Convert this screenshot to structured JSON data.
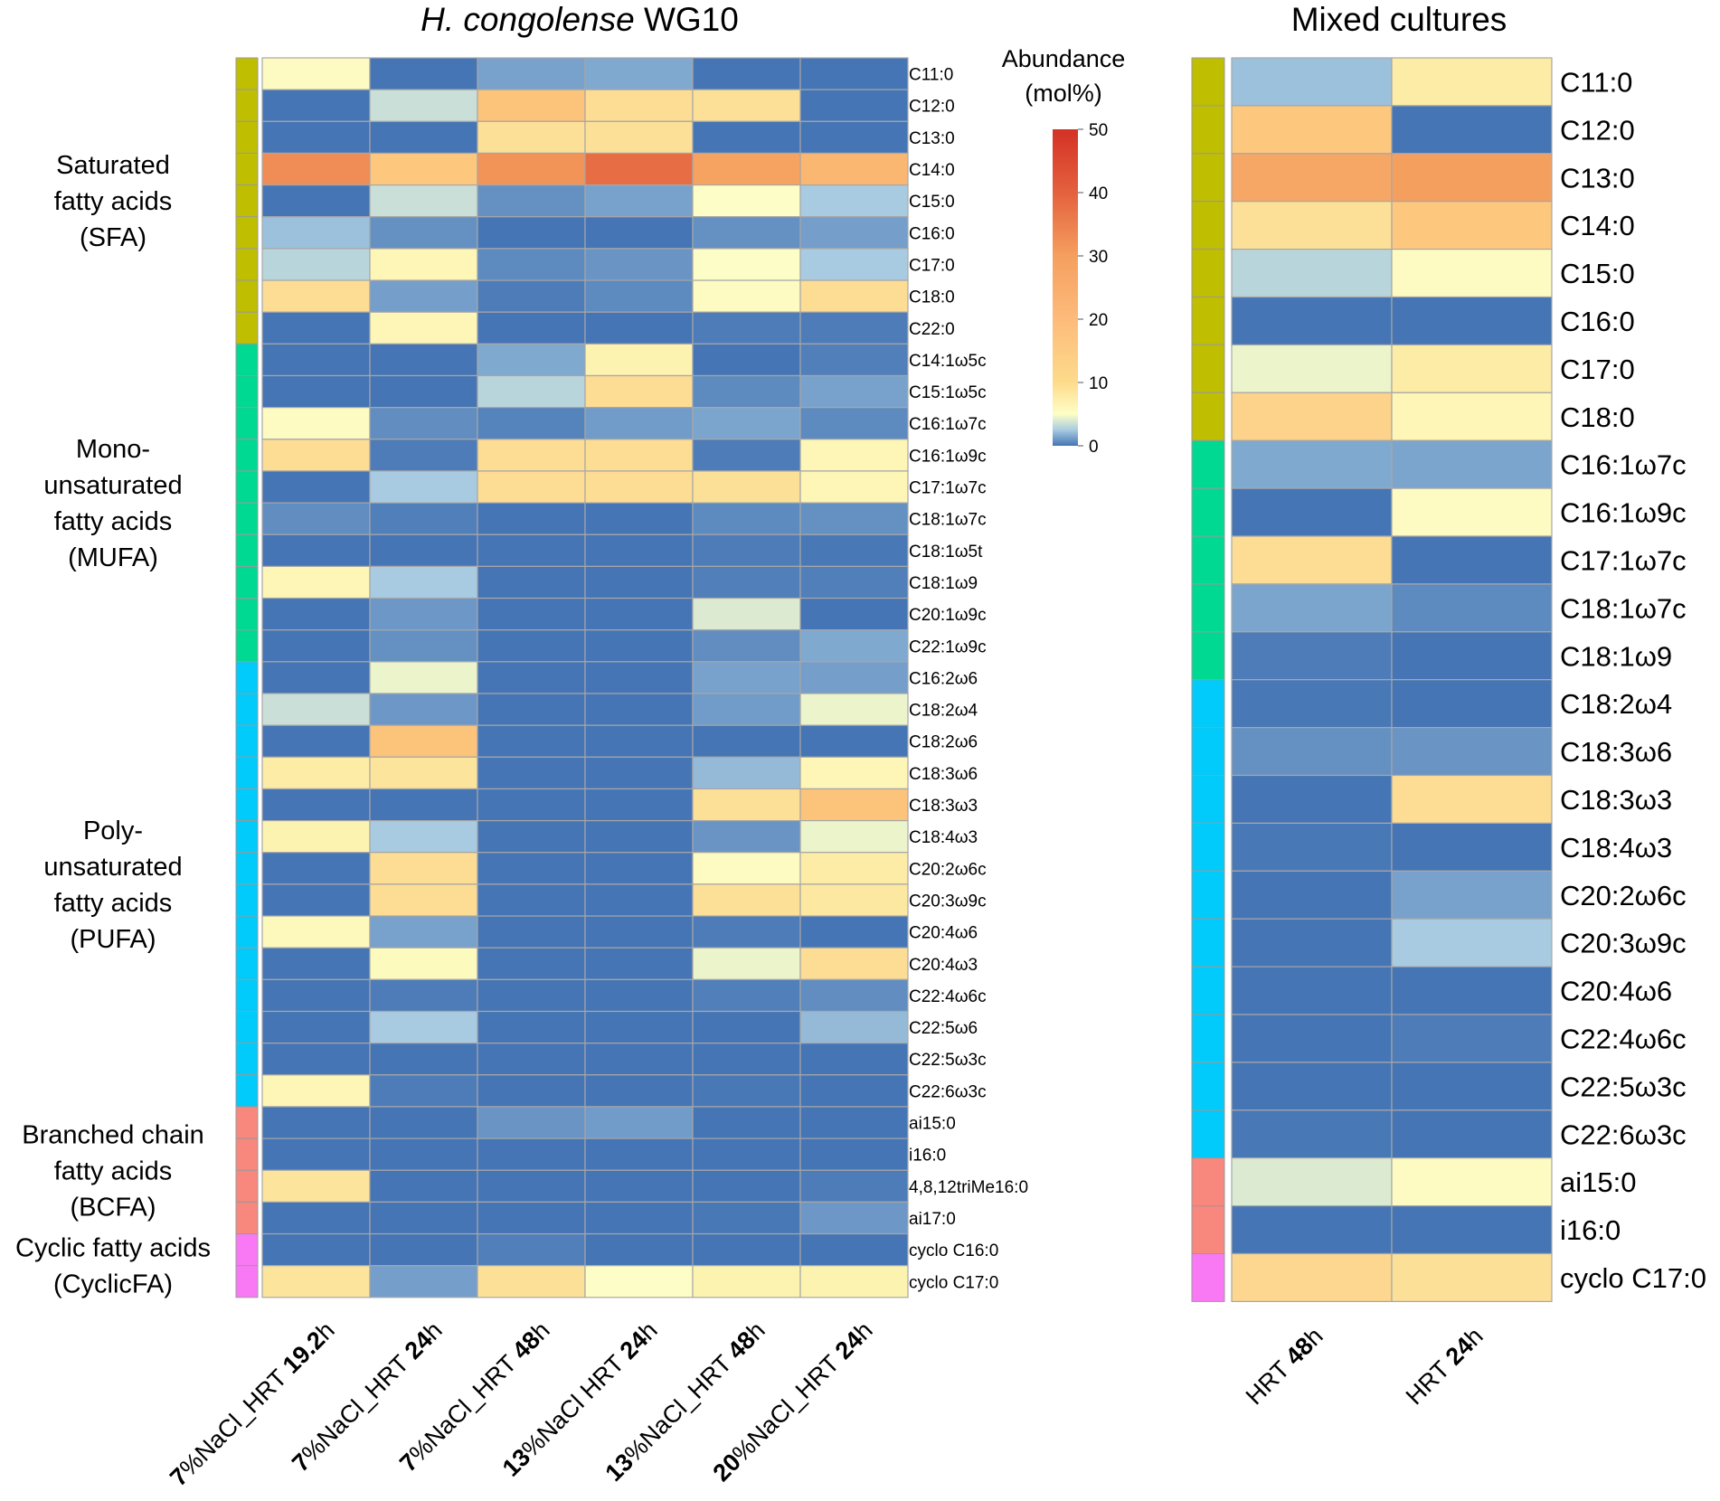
{
  "chart_data": [
    {
      "type": "heatmap",
      "title_italic": "H. congolense",
      "title_rest": " WG10",
      "legend_title": [
        "Abundance",
        "(mol%)"
      ],
      "value_unit": "mol%",
      "color_range": [
        0,
        50
      ],
      "legend_ticks": [
        "50",
        "40",
        "30",
        "20",
        "10",
        "0"
      ],
      "columns": [
        {
          "pre": "7",
          "mid": "%NaCl_HRT ",
          "bold": "19.2",
          "post": "h"
        },
        {
          "pre": "7",
          "mid": "%NaCl_HRT ",
          "bold": "24",
          "post": "h"
        },
        {
          "pre": "7",
          "mid": "%NaCl_HRT ",
          "bold": "48",
          "post": "h"
        },
        {
          "pre": "13",
          "mid": "%NaCl HRT ",
          "bold": "24",
          "post": "h"
        },
        {
          "pre": "13",
          "mid": "%NaCl_HRT ",
          "bold": "48",
          "post": "h"
        },
        {
          "pre": "20",
          "mid": "%NaCl_HRT ",
          "bold": "24",
          "post": "h"
        }
      ],
      "groups": [
        {
          "lines": [
            "Saturated",
            "fatty acids",
            "(SFA)"
          ],
          "color": "#bfbe00",
          "count": 9
        },
        {
          "lines": [
            "Mono-",
            "unsaturated",
            "fatty acids",
            "(MUFA)"
          ],
          "color": "#00d991",
          "count": 10
        },
        {
          "lines": [
            "Poly-",
            "unsaturated",
            "fatty acids",
            "(PUFA)"
          ],
          "color": "#00cbfb",
          "count": 14
        },
        {
          "lines": [
            "Branched chain",
            "fatty acids",
            "(BCFA)"
          ],
          "color": "#f8877d",
          "count": 4
        },
        {
          "lines": [
            "Cyclic fatty acids",
            "(CyclicFA)"
          ],
          "color": "#f979f5",
          "count": 2
        }
      ],
      "rows": [
        "C11:0",
        "C12:0",
        "C13:0",
        "C14:0",
        "C15:0",
        "C16:0",
        "C17:0",
        "C18:0",
        "C22:0",
        "C14:1ω5c",
        "C15:1ω5c",
        "C16:1ω7c",
        "C16:1ω9c",
        "C17:1ω7c",
        "C18:1ω7c",
        "C18:1ω5t",
        "C18:1ω9",
        "C20:1ω9c",
        "C22:1ω9c",
        "C16:2ω6",
        "C18:2ω4",
        "C18:2ω6",
        "C18:3ω6",
        "C18:3ω3",
        "C18:4ω3",
        "C20:2ω6c",
        "C20:3ω9c",
        "C20:4ω6",
        "C20:4ω3",
        "C22:4ω6c",
        "C22:5ω6",
        "C22:5ω3c",
        "C22:6ω3c",
        "ai15:0",
        "i16:0",
        "4,8,12triMe16:0",
        "ai17:0",
        "cyclo C16:0",
        "cyclo C17:0"
      ],
      "values": [
        [
          6,
          0,
          1.3,
          1.5,
          0,
          0
        ],
        [
          0,
          3.5,
          21,
          15,
          14,
          0
        ],
        [
          0,
          0,
          14,
          14,
          0,
          0
        ],
        [
          33,
          20,
          32,
          38,
          29,
          24
        ],
        [
          0,
          3.5,
          0.8,
          1.3,
          5,
          2.5
        ],
        [
          2.2,
          0.8,
          0,
          0,
          0.8,
          1.2
        ],
        [
          3,
          8,
          0.6,
          0.9,
          5,
          2.5
        ],
        [
          15,
          1.2,
          0.2,
          0.6,
          6,
          15
        ],
        [
          0,
          8,
          0,
          0,
          0.2,
          0.2
        ],
        [
          0,
          0,
          1.5,
          9,
          0,
          0.3
        ],
        [
          0,
          0,
          3,
          15,
          0.6,
          1.3
        ],
        [
          6,
          0.7,
          0.4,
          1.1,
          1.4,
          0.6
        ],
        [
          15,
          0.2,
          15,
          15,
          0.2,
          8
        ],
        [
          0,
          2.5,
          15,
          15,
          14,
          8
        ],
        [
          0.7,
          0.3,
          0,
          0,
          0.6,
          0.8
        ],
        [
          0,
          0,
          0,
          0,
          0.2,
          0.1
        ],
        [
          8,
          2.5,
          0,
          0,
          0.3,
          0.3
        ],
        [
          0,
          1,
          0,
          0,
          4,
          0
        ],
        [
          0,
          0.8,
          0,
          0,
          0.7,
          1.5
        ],
        [
          0,
          4.5,
          0,
          0,
          1.3,
          1.2
        ],
        [
          3.5,
          1,
          0,
          0,
          1.1,
          4.5
        ],
        [
          0,
          21,
          0,
          0,
          0,
          0
        ],
        [
          11,
          13,
          0,
          0,
          2,
          8
        ],
        [
          0,
          0,
          0,
          0,
          14,
          21
        ],
        [
          9,
          2.5,
          0,
          0,
          0.9,
          4.5
        ],
        [
          0,
          15,
          0,
          0,
          6,
          11
        ],
        [
          0,
          15,
          0,
          0,
          14,
          12
        ],
        [
          7,
          1.3,
          0,
          0,
          0.2,
          0
        ],
        [
          0,
          6.5,
          0,
          0,
          4.5,
          15
        ],
        [
          0,
          0.2,
          0,
          0,
          0.3,
          0.7
        ],
        [
          0,
          2.5,
          0,
          0,
          0,
          2
        ],
        [
          0,
          0,
          0,
          0,
          0,
          0
        ],
        [
          8,
          0.2,
          0,
          0,
          0.1,
          0
        ],
        [
          0,
          0,
          0.9,
          1.1,
          0,
          0
        ],
        [
          0,
          0,
          0,
          0,
          0,
          0
        ],
        [
          13,
          0,
          0,
          0,
          0,
          0.2
        ],
        [
          0,
          0,
          0,
          0,
          0.1,
          1
        ],
        [
          0,
          0,
          0.3,
          0,
          0,
          0
        ],
        [
          13,
          1.2,
          14,
          5,
          9,
          9
        ]
      ]
    },
    {
      "type": "heatmap",
      "title": "Mixed cultures",
      "value_unit": "mol%",
      "color_range": [
        0,
        50
      ],
      "columns": [
        {
          "pre": "HRT ",
          "bold": "48",
          "post": "h"
        },
        {
          "pre": "HRT ",
          "bold": "24",
          "post": "h"
        }
      ],
      "group_bars": [
        {
          "color": "#bfbe00",
          "count": 8
        },
        {
          "color": "#00d991",
          "count": 5
        },
        {
          "color": "#00cbfb",
          "count": 10
        },
        {
          "color": "#f8877d",
          "count": 2
        },
        {
          "color": "#f979f5",
          "count": 1
        }
      ],
      "rows": [
        "C11:0",
        "C12:0",
        "C13:0",
        "C14:0",
        "C15:0",
        "C16:0",
        "C17:0",
        "C18:0",
        "C16:1ω7c",
        "C16:1ω9c",
        "C17:1ω7c",
        "C18:1ω7c",
        "C18:1ω9",
        "C18:2ω4",
        "C18:3ω6",
        "C18:3ω3",
        "C18:4ω3",
        "C20:2ω6c",
        "C20:3ω9c",
        "C20:4ω6",
        "C22:4ω6c",
        "C22:5ω3c",
        "C22:6ω3c",
        "ai15:0",
        "i16:0",
        "cyclo C17:0"
      ],
      "values": [
        [
          2.2,
          11
        ],
        [
          20,
          0
        ],
        [
          28,
          30
        ],
        [
          14,
          20
        ],
        [
          3,
          6
        ],
        [
          0,
          0
        ],
        [
          4.5,
          11
        ],
        [
          17,
          8
        ],
        [
          1.5,
          1.4
        ],
        [
          0,
          6
        ],
        [
          15,
          0
        ],
        [
          1.4,
          0.6
        ],
        [
          0.2,
          0
        ],
        [
          0.1,
          0
        ],
        [
          0.8,
          0.9
        ],
        [
          0,
          15
        ],
        [
          0.1,
          0
        ],
        [
          0,
          1.3
        ],
        [
          0,
          2.5
        ],
        [
          0,
          0
        ],
        [
          0,
          0.2
        ],
        [
          0,
          0
        ],
        [
          0.1,
          0
        ],
        [
          4,
          6
        ],
        [
          0,
          0
        ],
        [
          16,
          14
        ]
      ]
    }
  ]
}
